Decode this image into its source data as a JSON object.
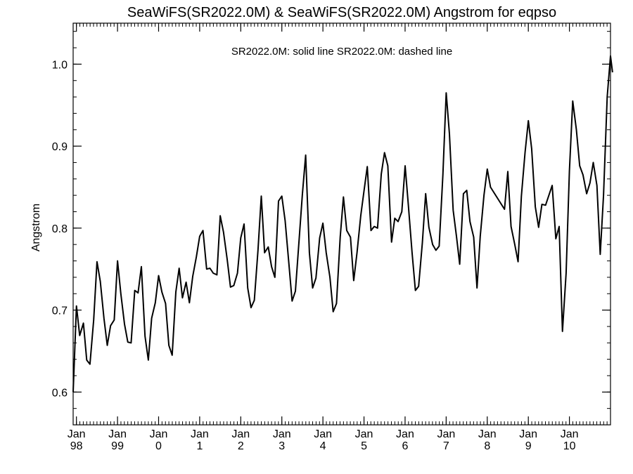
{
  "chart_data": {
    "type": "line",
    "title": "SeaWiFS(SR2022.0M) & SeaWiFS(SR2022.0M)  Angstrom for eqpso",
    "legend_text": "SR2022.0M: solid line   SR2022.0M: dashed line",
    "legend_placement": "top-center",
    "ylabel": "Angstrom",
    "xlabel": "",
    "xlim": [
      1997.92,
      2011.0
    ],
    "ylim": [
      0.56,
      1.05
    ],
    "grid": false,
    "y_ticks": [
      0.6,
      0.7,
      0.8,
      0.9,
      1.0
    ],
    "y_tick_labels": [
      "0.6",
      "0.7",
      "0.8",
      "0.9",
      "1.0"
    ],
    "x_ticks": [
      {
        "x": 1998,
        "line1": "Jan",
        "line2": "98"
      },
      {
        "x": 1999,
        "line1": "Jan",
        "line2": "99"
      },
      {
        "x": 2000,
        "line1": "Jan",
        "line2": "0"
      },
      {
        "x": 2001,
        "line1": "Jan",
        "line2": "1"
      },
      {
        "x": 2002,
        "line1": "Jan",
        "line2": "2"
      },
      {
        "x": 2003,
        "line1": "Jan",
        "line2": "3"
      },
      {
        "x": 2004,
        "line1": "Jan",
        "line2": "4"
      },
      {
        "x": 2005,
        "line1": "Jan",
        "line2": "5"
      },
      {
        "x": 2006,
        "line1": "Jan",
        "line2": "6"
      },
      {
        "x": 2007,
        "line1": "Jan",
        "line2": "7"
      },
      {
        "x": 2008,
        "line1": "Jan",
        "line2": "8"
      },
      {
        "x": 2009,
        "line1": "Jan",
        "line2": "9"
      },
      {
        "x": 2010,
        "line1": "Jan",
        "line2": "10"
      }
    ],
    "series": [
      {
        "style": "solid",
        "color": "#000000",
        "points": [
          [
            1997.92,
            0.6
          ],
          [
            1998.0,
            0.705
          ],
          [
            1998.08,
            0.669
          ],
          [
            1998.17,
            0.684
          ],
          [
            1998.25,
            0.639
          ],
          [
            1998.33,
            0.634
          ],
          [
            1998.42,
            0.688
          ],
          [
            1998.5,
            0.759
          ],
          [
            1998.58,
            0.735
          ],
          [
            1998.67,
            0.69
          ],
          [
            1998.75,
            0.657
          ],
          [
            1998.83,
            0.681
          ],
          [
            1998.92,
            0.688
          ],
          [
            1999.0,
            0.76
          ],
          [
            1999.08,
            0.72
          ],
          [
            1999.17,
            0.683
          ],
          [
            1999.25,
            0.661
          ],
          [
            1999.33,
            0.66
          ],
          [
            1999.42,
            0.724
          ],
          [
            1999.5,
            0.721
          ],
          [
            1999.58,
            0.753
          ],
          [
            1999.67,
            0.668
          ],
          [
            1999.75,
            0.639
          ],
          [
            1999.83,
            0.69
          ],
          [
            1999.92,
            0.709
          ],
          [
            2000.0,
            0.742
          ],
          [
            2000.08,
            0.722
          ],
          [
            2000.17,
            0.708
          ],
          [
            2000.25,
            0.657
          ],
          [
            2000.33,
            0.645
          ],
          [
            2000.42,
            0.722
          ],
          [
            2000.5,
            0.751
          ],
          [
            2000.58,
            0.715
          ],
          [
            2000.67,
            0.734
          ],
          [
            2000.75,
            0.709
          ],
          [
            2000.83,
            0.741
          ],
          [
            2000.92,
            0.765
          ],
          [
            2001.0,
            0.79
          ],
          [
            2001.08,
            0.797
          ],
          [
            2001.17,
            0.75
          ],
          [
            2001.25,
            0.751
          ],
          [
            2001.33,
            0.745
          ],
          [
            2001.42,
            0.743
          ],
          [
            2001.5,
            0.815
          ],
          [
            2001.58,
            0.795
          ],
          [
            2001.67,
            0.762
          ],
          [
            2001.75,
            0.728
          ],
          [
            2001.83,
            0.73
          ],
          [
            2001.92,
            0.745
          ],
          [
            2002.0,
            0.788
          ],
          [
            2002.08,
            0.805
          ],
          [
            2002.17,
            0.727
          ],
          [
            2002.25,
            0.703
          ],
          [
            2002.33,
            0.712
          ],
          [
            2002.42,
            0.773
          ],
          [
            2002.5,
            0.839
          ],
          [
            2002.58,
            0.77
          ],
          [
            2002.67,
            0.777
          ],
          [
            2002.75,
            0.753
          ],
          [
            2002.83,
            0.74
          ],
          [
            2002.92,
            0.833
          ],
          [
            2003.0,
            0.839
          ],
          [
            2003.08,
            0.809
          ],
          [
            2003.17,
            0.757
          ],
          [
            2003.25,
            0.711
          ],
          [
            2003.33,
            0.723
          ],
          [
            2003.42,
            0.786
          ],
          [
            2003.5,
            0.841
          ],
          [
            2003.58,
            0.889
          ],
          [
            2003.67,
            0.77
          ],
          [
            2003.75,
            0.727
          ],
          [
            2003.83,
            0.739
          ],
          [
            2003.92,
            0.788
          ],
          [
            2004.0,
            0.806
          ],
          [
            2004.08,
            0.77
          ],
          [
            2004.17,
            0.74
          ],
          [
            2004.25,
            0.698
          ],
          [
            2004.33,
            0.708
          ],
          [
            2004.42,
            0.789
          ],
          [
            2004.5,
            0.838
          ],
          [
            2004.58,
            0.797
          ],
          [
            2004.67,
            0.789
          ],
          [
            2004.75,
            0.736
          ],
          [
            2004.83,
            0.77
          ],
          [
            2004.92,
            0.815
          ],
          [
            2005.0,
            0.845
          ],
          [
            2005.08,
            0.875
          ],
          [
            2005.17,
            0.797
          ],
          [
            2005.25,
            0.802
          ],
          [
            2005.33,
            0.8
          ],
          [
            2005.42,
            0.866
          ],
          [
            2005.5,
            0.892
          ],
          [
            2005.58,
            0.876
          ],
          [
            2005.67,
            0.783
          ],
          [
            2005.75,
            0.812
          ],
          [
            2005.83,
            0.808
          ],
          [
            2005.92,
            0.82
          ],
          [
            2006.0,
            0.876
          ],
          [
            2006.08,
            0.828
          ],
          [
            2006.17,
            0.77
          ],
          [
            2006.25,
            0.724
          ],
          [
            2006.33,
            0.729
          ],
          [
            2006.42,
            0.782
          ],
          [
            2006.5,
            0.842
          ],
          [
            2006.58,
            0.801
          ],
          [
            2006.67,
            0.78
          ],
          [
            2006.75,
            0.773
          ],
          [
            2006.83,
            0.778
          ],
          [
            2006.92,
            0.865
          ],
          [
            2007.0,
            0.965
          ],
          [
            2007.08,
            0.915
          ],
          [
            2007.17,
            0.822
          ],
          [
            2007.25,
            0.79
          ],
          [
            2007.33,
            0.756
          ],
          [
            2007.42,
            0.842
          ],
          [
            2007.5,
            0.846
          ],
          [
            2007.58,
            0.808
          ],
          [
            2007.67,
            0.789
          ],
          [
            2007.75,
            0.727
          ],
          [
            2007.83,
            0.79
          ],
          [
            2007.92,
            0.84
          ],
          [
            2008.0,
            0.872
          ],
          [
            2008.08,
            0.85
          ],
          [
            2008.42,
            0.823
          ],
          [
            2008.5,
            0.869
          ],
          [
            2008.58,
            0.802
          ],
          [
            2008.67,
            0.78
          ],
          [
            2008.75,
            0.759
          ],
          [
            2008.83,
            0.839
          ],
          [
            2008.92,
            0.892
          ],
          [
            2009.0,
            0.931
          ],
          [
            2009.08,
            0.897
          ],
          [
            2009.17,
            0.826
          ],
          [
            2009.25,
            0.801
          ],
          [
            2009.33,
            0.829
          ],
          [
            2009.42,
            0.828
          ],
          [
            2009.58,
            0.852
          ],
          [
            2009.67,
            0.787
          ],
          [
            2009.75,
            0.802
          ],
          [
            2009.83,
            0.674
          ],
          [
            2009.92,
            0.745
          ],
          [
            2010.0,
            0.87
          ],
          [
            2010.08,
            0.955
          ],
          [
            2010.17,
            0.92
          ],
          [
            2010.25,
            0.876
          ],
          [
            2010.33,
            0.865
          ],
          [
            2010.42,
            0.842
          ],
          [
            2010.5,
            0.855
          ],
          [
            2010.58,
            0.88
          ],
          [
            2010.67,
            0.852
          ],
          [
            2010.75,
            0.768
          ],
          [
            2010.83,
            0.84
          ],
          [
            2010.92,
            0.96
          ],
          [
            2011.0,
            1.01
          ],
          [
            2011.05,
            0.99
          ]
        ]
      }
    ]
  }
}
